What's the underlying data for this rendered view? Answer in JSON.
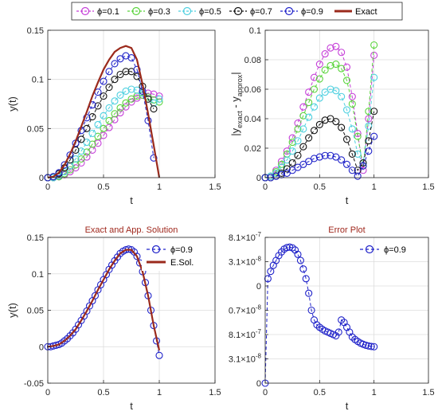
{
  "legend_top": [
    {
      "label": "ϕ=0.1",
      "color": "#c53fd8",
      "style": "dash-circle"
    },
    {
      "label": "ϕ=0.3",
      "color": "#5ad43c",
      "style": "dash-circle"
    },
    {
      "label": "ϕ=0.5",
      "color": "#4ed0e0",
      "style": "dash-circle"
    },
    {
      "label": "ϕ=0.7",
      "color": "#111111",
      "style": "dash-circle"
    },
    {
      "label": "ϕ=0.9",
      "color": "#1f22c9",
      "style": "dash-circle"
    },
    {
      "label": "Exact",
      "color": "#9b2a1c",
      "style": "solid"
    }
  ],
  "chart_data": [
    {
      "id": "top-left",
      "type": "line",
      "title": "",
      "xlabel": "t",
      "ylabel": "y(t)",
      "xlim": [
        0,
        1.5
      ],
      "ylim": [
        0,
        0.15
      ],
      "xticks": [
        "0",
        "0.5",
        "1",
        "1.5"
      ],
      "yticks": [
        "0",
        "0.05",
        "0.1",
        "0.15"
      ],
      "grid": true,
      "series": [
        {
          "name": "ϕ=0.1",
          "color": "#c53fd8",
          "x": [
            0,
            0.05,
            0.1,
            0.15,
            0.2,
            0.25,
            0.3,
            0.35,
            0.4,
            0.45,
            0.5,
            0.55,
            0.6,
            0.65,
            0.7,
            0.75,
            0.8,
            0.85,
            0.9,
            0.95,
            1.0
          ],
          "y": [
            0,
            0.0,
            0.001,
            0.003,
            0.006,
            0.01,
            0.015,
            0.021,
            0.028,
            0.035,
            0.043,
            0.051,
            0.059,
            0.066,
            0.072,
            0.077,
            0.081,
            0.084,
            0.086,
            0.085,
            0.083
          ]
        },
        {
          "name": "ϕ=0.3",
          "color": "#5ad43c",
          "x": [
            0,
            0.05,
            0.1,
            0.15,
            0.2,
            0.25,
            0.3,
            0.35,
            0.4,
            0.45,
            0.5,
            0.55,
            0.6,
            0.65,
            0.7,
            0.75,
            0.8,
            0.85,
            0.9,
            0.95,
            1.0
          ],
          "y": [
            0,
            0.0,
            0.001,
            0.004,
            0.008,
            0.013,
            0.019,
            0.026,
            0.034,
            0.042,
            0.05,
            0.058,
            0.065,
            0.071,
            0.076,
            0.08,
            0.083,
            0.084,
            0.082,
            0.079,
            0.077
          ]
        },
        {
          "name": "ϕ=0.5",
          "color": "#4ed0e0",
          "x": [
            0,
            0.05,
            0.1,
            0.15,
            0.2,
            0.25,
            0.3,
            0.35,
            0.4,
            0.45,
            0.5,
            0.55,
            0.6,
            0.65,
            0.7,
            0.75,
            0.8,
            0.85,
            0.9,
            0.95,
            1.0
          ],
          "y": [
            0,
            0.0,
            0.002,
            0.006,
            0.012,
            0.019,
            0.027,
            0.036,
            0.045,
            0.054,
            0.063,
            0.071,
            0.078,
            0.084,
            0.088,
            0.09,
            0.089,
            0.086,
            0.08,
            0.076,
            0.08
          ]
        },
        {
          "name": "ϕ=0.7",
          "color": "#111111",
          "x": [
            0,
            0.05,
            0.1,
            0.15,
            0.2,
            0.25,
            0.3,
            0.35,
            0.4,
            0.45,
            0.5,
            0.55,
            0.6,
            0.65,
            0.7,
            0.75,
            0.8,
            0.85,
            0.9,
            0.95
          ],
          "y": [
            0,
            0.001,
            0.004,
            0.01,
            0.018,
            0.028,
            0.039,
            0.05,
            0.062,
            0.073,
            0.083,
            0.092,
            0.1,
            0.105,
            0.108,
            0.108,
            0.103,
            0.093,
            0.08,
            0.07
          ]
        },
        {
          "name": "ϕ=0.9",
          "color": "#1f22c9",
          "x": [
            0,
            0.05,
            0.1,
            0.15,
            0.2,
            0.25,
            0.3,
            0.35,
            0.4,
            0.45,
            0.5,
            0.55,
            0.6,
            0.65,
            0.7,
            0.75,
            0.8,
            0.85,
            0.9,
            0.95
          ],
          "y": [
            0,
            0.001,
            0.005,
            0.013,
            0.023,
            0.035,
            0.048,
            0.061,
            0.074,
            0.087,
            0.098,
            0.108,
            0.116,
            0.121,
            0.124,
            0.122,
            0.11,
            0.088,
            0.058,
            0.02
          ]
        },
        {
          "name": "Exact",
          "color": "#9b2a1c",
          "dash": false,
          "markers": false,
          "x": [
            0,
            0.05,
            0.1,
            0.15,
            0.2,
            0.25,
            0.3,
            0.35,
            0.4,
            0.45,
            0.5,
            0.55,
            0.6,
            0.65,
            0.7,
            0.75,
            0.8,
            0.85,
            0.9,
            0.95,
            1.0
          ],
          "y": [
            0,
            0.001,
            0.005,
            0.013,
            0.024,
            0.037,
            0.052,
            0.067,
            0.083,
            0.097,
            0.11,
            0.12,
            0.128,
            0.132,
            0.134,
            0.132,
            0.12,
            0.095,
            0.065,
            0.033,
            0
          ]
        }
      ]
    },
    {
      "id": "top-right",
      "type": "line",
      "title": "",
      "xlabel": "t",
      "ylabel": "|y_exact - y_approx|",
      "ylabel_main": "|y",
      "ylabel_sub1": "exact",
      "ylabel_mid": " - y",
      "ylabel_sub2": "approx",
      "ylabel_end": "|",
      "xlim": [
        0,
        1.5
      ],
      "ylim": [
        0,
        0.1
      ],
      "xticks": [
        "0",
        "0.5",
        "1",
        "1.5"
      ],
      "yticks": [
        "0",
        "0.02",
        "0.04",
        "0.06",
        "0.08",
        "0.1"
      ],
      "grid": true,
      "series": [
        {
          "name": "ϕ=0.1",
          "color": "#c53fd8",
          "x": [
            0,
            0.05,
            0.1,
            0.15,
            0.2,
            0.25,
            0.3,
            0.35,
            0.4,
            0.45,
            0.5,
            0.55,
            0.6,
            0.65,
            0.7,
            0.75,
            0.8,
            0.85,
            0.9,
            0.95,
            1.0
          ],
          "y": [
            0,
            0.001,
            0.005,
            0.011,
            0.018,
            0.027,
            0.037,
            0.048,
            0.058,
            0.068,
            0.077,
            0.084,
            0.088,
            0.089,
            0.085,
            0.075,
            0.055,
            0.03,
            0.005,
            0.04,
            0.083
          ]
        },
        {
          "name": "ϕ=0.3",
          "color": "#5ad43c",
          "x": [
            0,
            0.05,
            0.1,
            0.15,
            0.2,
            0.25,
            0.3,
            0.35,
            0.4,
            0.45,
            0.5,
            0.55,
            0.6,
            0.65,
            0.7,
            0.75,
            0.8,
            0.85,
            0.9,
            0.95,
            1.0
          ],
          "y": [
            0,
            0.001,
            0.004,
            0.009,
            0.016,
            0.024,
            0.033,
            0.042,
            0.051,
            0.06,
            0.067,
            0.073,
            0.076,
            0.077,
            0.074,
            0.066,
            0.05,
            0.028,
            0.008,
            0.045,
            0.09
          ]
        },
        {
          "name": "ϕ=0.5",
          "color": "#4ed0e0",
          "x": [
            0,
            0.05,
            0.1,
            0.15,
            0.2,
            0.25,
            0.3,
            0.35,
            0.4,
            0.45,
            0.5,
            0.55,
            0.6,
            0.65,
            0.7,
            0.75,
            0.8,
            0.85,
            0.9,
            0.95,
            1.0
          ],
          "y": [
            0,
            0.001,
            0.003,
            0.007,
            0.012,
            0.018,
            0.025,
            0.033,
            0.041,
            0.048,
            0.054,
            0.058,
            0.06,
            0.059,
            0.055,
            0.046,
            0.033,
            0.016,
            0.01,
            0.035,
            0.068
          ]
        },
        {
          "name": "ϕ=0.7",
          "color": "#111111",
          "x": [
            0,
            0.05,
            0.1,
            0.15,
            0.2,
            0.25,
            0.3,
            0.35,
            0.4,
            0.45,
            0.5,
            0.55,
            0.6,
            0.65,
            0.7,
            0.75,
            0.8,
            0.85,
            0.9,
            0.95,
            1.0
          ],
          "y": [
            0,
            0.0,
            0.001,
            0.003,
            0.006,
            0.01,
            0.015,
            0.021,
            0.027,
            0.032,
            0.036,
            0.039,
            0.04,
            0.038,
            0.034,
            0.026,
            0.016,
            0.005,
            0.01,
            0.025,
            0.045
          ]
        },
        {
          "name": "ϕ=0.9",
          "color": "#1f22c9",
          "x": [
            0,
            0.05,
            0.1,
            0.15,
            0.2,
            0.25,
            0.3,
            0.35,
            0.4,
            0.45,
            0.5,
            0.55,
            0.6,
            0.65,
            0.7,
            0.75,
            0.8,
            0.85,
            0.9,
            0.95,
            1.0
          ],
          "y": [
            0,
            0.0,
            0.001,
            0.002,
            0.003,
            0.005,
            0.007,
            0.009,
            0.011,
            0.013,
            0.014,
            0.015,
            0.015,
            0.014,
            0.012,
            0.009,
            0.005,
            0.001,
            0.008,
            0.018,
            0.028
          ]
        }
      ]
    },
    {
      "id": "bottom-left",
      "type": "line",
      "title": "Exact and App. Solution",
      "xlabel": "t",
      "ylabel": "y(t)",
      "xlim": [
        0,
        1.5
      ],
      "ylim": [
        -0.05,
        0.15
      ],
      "xticks": [
        "0",
        "0.5",
        "1",
        "1.5"
      ],
      "yticks": [
        "-0.05",
        "0",
        "0.05",
        "0.1",
        "0.15"
      ],
      "grid": true,
      "legend": [
        {
          "label": "ϕ=0.9",
          "color": "#1f22c9",
          "style": "dash-circle"
        },
        {
          "label": "E.Sol.",
          "color": "#9b2a1c",
          "style": "solid"
        }
      ],
      "series": [
        {
          "name": "ϕ=0.9",
          "color": "#1f22c9",
          "x": [
            0,
            0.025,
            0.05,
            0.075,
            0.1,
            0.125,
            0.15,
            0.175,
            0.2,
            0.225,
            0.25,
            0.275,
            0.3,
            0.325,
            0.35,
            0.375,
            0.4,
            0.425,
            0.45,
            0.475,
            0.5,
            0.525,
            0.55,
            0.575,
            0.6,
            0.625,
            0.65,
            0.675,
            0.7,
            0.725,
            0.75,
            0.775,
            0.8,
            0.825,
            0.85,
            0.875,
            0.9,
            0.925,
            0.95,
            0.975,
            1.0
          ],
          "y": [
            0,
            0.0,
            0.001,
            0.002,
            0.003,
            0.005,
            0.008,
            0.011,
            0.015,
            0.019,
            0.024,
            0.03,
            0.036,
            0.042,
            0.049,
            0.056,
            0.063,
            0.07,
            0.078,
            0.085,
            0.092,
            0.099,
            0.106,
            0.112,
            0.118,
            0.123,
            0.128,
            0.131,
            0.133,
            0.134,
            0.133,
            0.13,
            0.124,
            0.115,
            0.103,
            0.088,
            0.07,
            0.05,
            0.029,
            0.008,
            -0.012
          ]
        },
        {
          "name": "E.Sol.",
          "color": "#9b2a1c",
          "x": [
            0,
            0.05,
            0.1,
            0.15,
            0.2,
            0.25,
            0.3,
            0.35,
            0.4,
            0.45,
            0.5,
            0.55,
            0.6,
            0.65,
            0.7,
            0.75,
            0.8,
            0.85,
            0.9,
            0.95,
            1.0
          ],
          "y": [
            0,
            0.001,
            0.003,
            0.008,
            0.015,
            0.024,
            0.036,
            0.049,
            0.063,
            0.078,
            0.092,
            0.106,
            0.118,
            0.128,
            0.133,
            0.133,
            0.124,
            0.103,
            0.07,
            0.029,
            -0.005
          ]
        }
      ]
    },
    {
      "id": "bottom-right",
      "type": "line",
      "title": "Error Plot",
      "xlabel": "t",
      "ylabel": "",
      "xlim": [
        0,
        1.5
      ],
      "xticks": [
        "0",
        "0.5",
        "1",
        "1.5"
      ],
      "yticks": [
        "8.1×10⁻⁷",
        "3.1×10⁻⁸",
        "0",
        "0.7×10⁻⁸",
        "8.1×10⁻⁷",
        "3.1×10⁻⁸",
        "0"
      ],
      "ytick_base": [
        "8.1×10",
        "3.1×10",
        "0",
        "0.7×10",
        "8.1×10",
        "3.1×10",
        "0"
      ],
      "ytick_exp": [
        "-7",
        "-8",
        "",
        "-8",
        "-7",
        "-8",
        ""
      ],
      "ylevels": [
        6,
        5,
        4,
        3,
        2,
        1,
        0
      ],
      "ylim_levels": [
        0,
        6
      ],
      "grid": true,
      "legend": [
        {
          "label": "ϕ=0.9",
          "color": "#1f22c9",
          "style": "dash-circle"
        }
      ],
      "series": [
        {
          "name": "ϕ=0.9",
          "color": "#1f22c9",
          "x": [
            0,
            0.025,
            0.05,
            0.075,
            0.1,
            0.125,
            0.15,
            0.175,
            0.2,
            0.225,
            0.25,
            0.275,
            0.3,
            0.325,
            0.35,
            0.375,
            0.4,
            0.425,
            0.45,
            0.475,
            0.5,
            0.525,
            0.55,
            0.575,
            0.6,
            0.625,
            0.65,
            0.675,
            0.7,
            0.725,
            0.75,
            0.775,
            0.8,
            0.825,
            0.85,
            0.875,
            0.9,
            0.925,
            0.95,
            0.975,
            1.0
          ],
          "y": [
            0,
            4.3,
            4.6,
            4.85,
            5.05,
            5.25,
            5.4,
            5.52,
            5.58,
            5.6,
            5.57,
            5.48,
            5.3,
            5.05,
            4.7,
            4.3,
            3.7,
            3.0,
            2.6,
            2.4,
            2.3,
            2.22,
            2.15,
            2.1,
            2.05,
            2.0,
            1.95,
            2.1,
            2.6,
            2.5,
            2.3,
            2.1,
            1.9,
            1.8,
            1.72,
            1.65,
            1.6,
            1.56,
            1.53,
            1.51,
            1.5
          ]
        }
      ]
    }
  ]
}
